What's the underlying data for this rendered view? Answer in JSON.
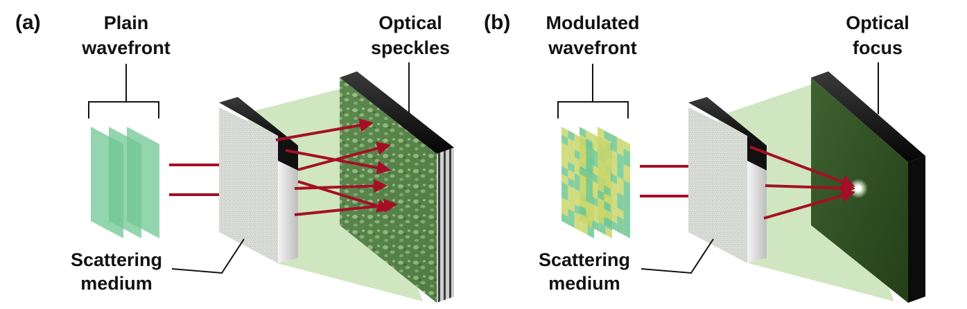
{
  "colors": {
    "arrow": "#a50f26",
    "light_cone": "#cfe6c0",
    "wave_green": "#6fc792",
    "wave_yellow": "#c9d66a",
    "screen_dark": "#2b4d1f",
    "frame_black": "#111111",
    "medium_grey": "#d4d6d2"
  },
  "panel_a": {
    "tag": "(a)",
    "wavefront_label": [
      "Plain",
      "wavefront"
    ],
    "output_label": [
      "Optical",
      "speckles"
    ],
    "medium_label": [
      "Scattering",
      "medium"
    ]
  },
  "panel_b": {
    "tag": "(b)",
    "wavefront_label": [
      "Modulated",
      "wavefront"
    ],
    "output_label": [
      "Optical",
      "focus"
    ],
    "medium_label": [
      "Scattering",
      "medium"
    ]
  },
  "icons": [
    "plain-wavefront-plates-icon",
    "modulated-wavefront-plates-icon",
    "scattering-medium-slab-icon",
    "speckle-screen-icon",
    "focus-screen-icon",
    "arrow-icon"
  ]
}
